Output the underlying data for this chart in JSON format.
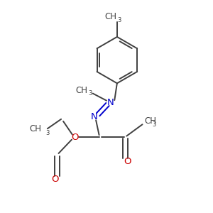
{
  "bg_color": "#ffffff",
  "line_color": "#404040",
  "N_color": "#0000cc",
  "O_color": "#cc0000",
  "font_size": 8.5,
  "line_width": 1.4,
  "figsize": [
    3.0,
    3.0
  ],
  "dpi": 100,
  "xlim": [
    0,
    10
  ],
  "ylim": [
    0,
    10
  ]
}
